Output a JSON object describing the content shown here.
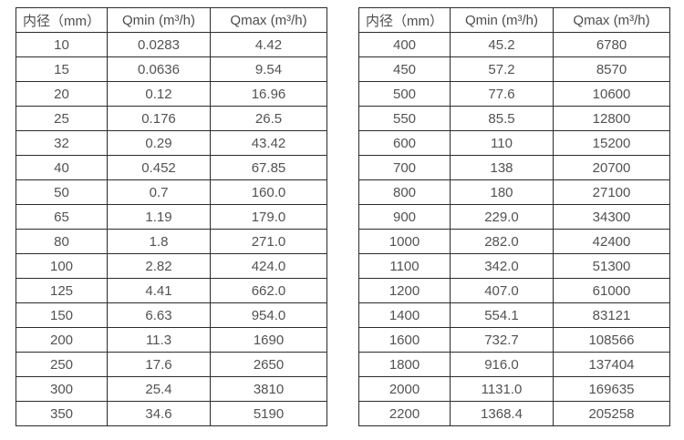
{
  "colors": {
    "background": "#ffffff",
    "border": "#2b2b2b",
    "text": "#525252"
  },
  "tables": [
    {
      "name": "flow-table-small-diameters",
      "headers": [
        "内径（mm）",
        "Qmin (m³/h)",
        "Qmax (m³/h)"
      ],
      "rows": [
        [
          "10",
          "0.0283",
          "4.42"
        ],
        [
          "15",
          "0.0636",
          "9.54"
        ],
        [
          "20",
          "0.12",
          "16.96"
        ],
        [
          "25",
          "0.176",
          "26.5"
        ],
        [
          "32",
          "0.29",
          "43.42"
        ],
        [
          "40",
          "0.452",
          "67.85"
        ],
        [
          "50",
          "0.7",
          "160.0"
        ],
        [
          "65",
          "1.19",
          "179.0"
        ],
        [
          "80",
          "1.8",
          "271.0"
        ],
        [
          "100",
          "2.82",
          "424.0"
        ],
        [
          "125",
          "4.41",
          "662.0"
        ],
        [
          "150",
          "6.63",
          "954.0"
        ],
        [
          "200",
          "11.3",
          "1690"
        ],
        [
          "250",
          "17.6",
          "2650"
        ],
        [
          "300",
          "25.4",
          "3810"
        ],
        [
          "350",
          "34.6",
          "5190"
        ]
      ]
    },
    {
      "name": "flow-table-large-diameters",
      "headers": [
        "内径（mm）",
        "Qmin (m³/h)",
        "Qmax (m³/h)"
      ],
      "rows": [
        [
          "400",
          "45.2",
          "6780"
        ],
        [
          "450",
          "57.2",
          "8570"
        ],
        [
          "500",
          "77.6",
          "10600"
        ],
        [
          "550",
          "85.5",
          "12800"
        ],
        [
          "600",
          "110",
          "15200"
        ],
        [
          "700",
          "138",
          "20700"
        ],
        [
          "800",
          "180",
          "27100"
        ],
        [
          "900",
          "229.0",
          "34300"
        ],
        [
          "1000",
          "282.0",
          "42400"
        ],
        [
          "1100",
          "342.0",
          "51300"
        ],
        [
          "1200",
          "407.0",
          "61000"
        ],
        [
          "1400",
          "554.1",
          "83121"
        ],
        [
          "1600",
          "732.7",
          "108566"
        ],
        [
          "1800",
          "916.0",
          "137404"
        ],
        [
          "2000",
          "1131.0",
          "169635"
        ],
        [
          "2200",
          "1368.4",
          "205258"
        ]
      ]
    }
  ]
}
